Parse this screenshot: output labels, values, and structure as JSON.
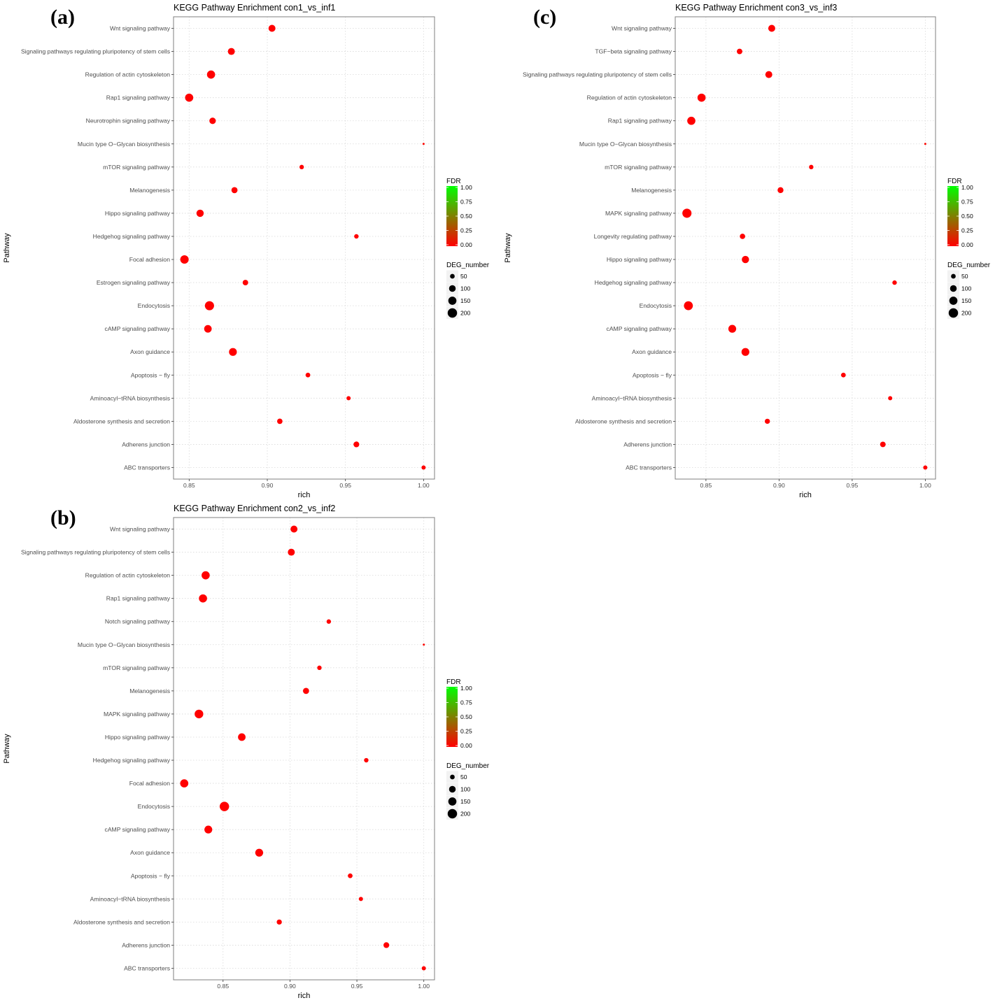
{
  "legend": {
    "color_title": "FDR",
    "color_ticks": [
      "1.00",
      "0.75",
      "0.50",
      "0.25",
      "0.00"
    ],
    "color_low": "#ff0000",
    "color_high": "#00ff00",
    "size_title": "DEG_number",
    "size_ticks": [
      "50",
      "100",
      "150",
      "200"
    ]
  },
  "chart_data": [
    {
      "panel_label": "(a)",
      "type": "scatter",
      "title": "KEGG Pathway Enrichment  con1_vs_inf1",
      "xlabel": "rich",
      "ylabel": "Pathway",
      "xlim": [
        0.84,
        1.007
      ],
      "xticks": [
        0.85,
        0.9,
        0.95,
        1.0
      ],
      "xtick_labels": [
        "0.85",
        "0.90",
        "0.95",
        "1.00"
      ],
      "grid": true,
      "legend_position": "right",
      "categories": [
        "Wnt signaling pathway",
        "Signaling pathways regulating pluripotency of stem cells",
        "Regulation of actin cytoskeleton",
        "Rap1 signaling pathway",
        "Neurotrophin signaling pathway",
        "Mucin type O−Glycan biosynthesis",
        "mTOR signaling pathway",
        "Melanogenesis",
        "Hippo signaling pathway",
        "Hedgehog signaling pathway",
        "Focal adhesion",
        "Estrogen signaling pathway",
        "Endocytosis",
        "cAMP signaling pathway",
        "Axon guidance",
        "Apoptosis − fly",
        "Aminoacyl−tRNA biosynthesis",
        "Aldosterone synthesis and secretion",
        "Adherens junction",
        "ABC transporters"
      ],
      "rich": [
        0.903,
        0.877,
        0.864,
        0.85,
        0.865,
        1.0,
        0.922,
        0.879,
        0.857,
        0.957,
        0.847,
        0.886,
        0.863,
        0.862,
        0.878,
        0.926,
        0.952,
        0.908,
        0.957,
        1.0
      ],
      "deg_number": [
        110,
        110,
        150,
        150,
        95,
        10,
        45,
        85,
        120,
        45,
        160,
        70,
        190,
        130,
        140,
        50,
        40,
        65,
        75,
        40
      ],
      "fdr": [
        0,
        0,
        0,
        0,
        0,
        0.02,
        0,
        0,
        0,
        0,
        0,
        0,
        0,
        0,
        0,
        0,
        0,
        0,
        0,
        0
      ]
    },
    {
      "panel_label": "(c)",
      "type": "scatter",
      "title": "KEGG Pathway Enrichment  con3_vs_inf3",
      "xlabel": "rich",
      "ylabel": "Pathway",
      "xlim": [
        0.829,
        1.007
      ],
      "xticks": [
        0.85,
        0.9,
        0.95,
        1.0
      ],
      "xtick_labels": [
        "0.85",
        "0.90",
        "0.95",
        "1.00"
      ],
      "grid": true,
      "legend_position": "right",
      "categories": [
        "Wnt signaling pathway",
        "TGF−beta signaling pathway",
        "Signaling pathways regulating pluripotency of stem cells",
        "Regulation of actin cytoskeleton",
        "Rap1 signaling pathway",
        "Mucin type O−Glycan biosynthesis",
        "mTOR signaling pathway",
        "Melanogenesis",
        "MAPK signaling pathway",
        "Longevity regulating pathway",
        "Hippo signaling pathway",
        "Hedgehog signaling pathway",
        "Endocytosis",
        "cAMP signaling pathway",
        "Axon guidance",
        "Apoptosis − fly",
        "Aminoacyl−tRNA biosynthesis",
        "Aldosterone synthesis and secretion",
        "Adherens junction",
        "ABC transporters"
      ],
      "rich": [
        0.895,
        0.873,
        0.893,
        0.847,
        0.84,
        1.0,
        0.922,
        0.901,
        0.837,
        0.875,
        0.877,
        0.979,
        0.838,
        0.868,
        0.877,
        0.944,
        0.976,
        0.892,
        0.971,
        1.0
      ],
      "deg_number": [
        110,
        70,
        110,
        150,
        150,
        10,
        45,
        80,
        190,
        65,
        120,
        45,
        180,
        140,
        140,
        50,
        40,
        60,
        70,
        40
      ],
      "fdr": [
        0,
        0,
        0,
        0,
        0,
        0.02,
        0,
        0,
        0,
        0,
        0,
        0,
        0,
        0,
        0,
        0,
        0,
        0,
        0,
        0
      ]
    },
    {
      "panel_label": "(b)",
      "type": "scatter",
      "title": "KEGG Pathway Enrichment  con2_vs_inf2",
      "xlabel": "rich",
      "ylabel": "Pathway",
      "xlim": [
        0.813,
        1.008
      ],
      "xticks": [
        0.85,
        0.9,
        0.95,
        1.0
      ],
      "xtick_labels": [
        "0.85",
        "0.90",
        "0.95",
        "1.00"
      ],
      "grid": true,
      "legend_position": "right",
      "categories": [
        "Wnt signaling pathway",
        "Signaling pathways regulating pluripotency of stem cells",
        "Regulation of actin cytoskeleton",
        "Rap1 signaling pathway",
        "Notch signaling pathway",
        "Mucin type O−Glycan biosynthesis",
        "mTOR signaling pathway",
        "Melanogenesis",
        "MAPK signaling pathway",
        "Hippo signaling pathway",
        "Hedgehog signaling pathway",
        "Focal adhesion",
        "Endocytosis",
        "cAMP signaling pathway",
        "Axon guidance",
        "Apoptosis − fly",
        "Aminoacyl−tRNA biosynthesis",
        "Aldosterone synthesis and secretion",
        "Adherens junction",
        "ABC transporters"
      ],
      "rich": [
        0.903,
        0.901,
        0.837,
        0.835,
        0.929,
        1.0,
        0.922,
        0.912,
        0.832,
        0.864,
        0.957,
        0.821,
        0.851,
        0.839,
        0.877,
        0.945,
        0.953,
        0.892,
        0.972,
        1.0
      ],
      "deg_number": [
        110,
        110,
        150,
        150,
        45,
        10,
        45,
        85,
        170,
        130,
        45,
        150,
        200,
        140,
        140,
        50,
        40,
        60,
        75,
        40
      ],
      "fdr": [
        0,
        0,
        0,
        0,
        0,
        0.02,
        0,
        0,
        0,
        0,
        0,
        0,
        0,
        0,
        0,
        0,
        0,
        0,
        0,
        0
      ]
    }
  ]
}
